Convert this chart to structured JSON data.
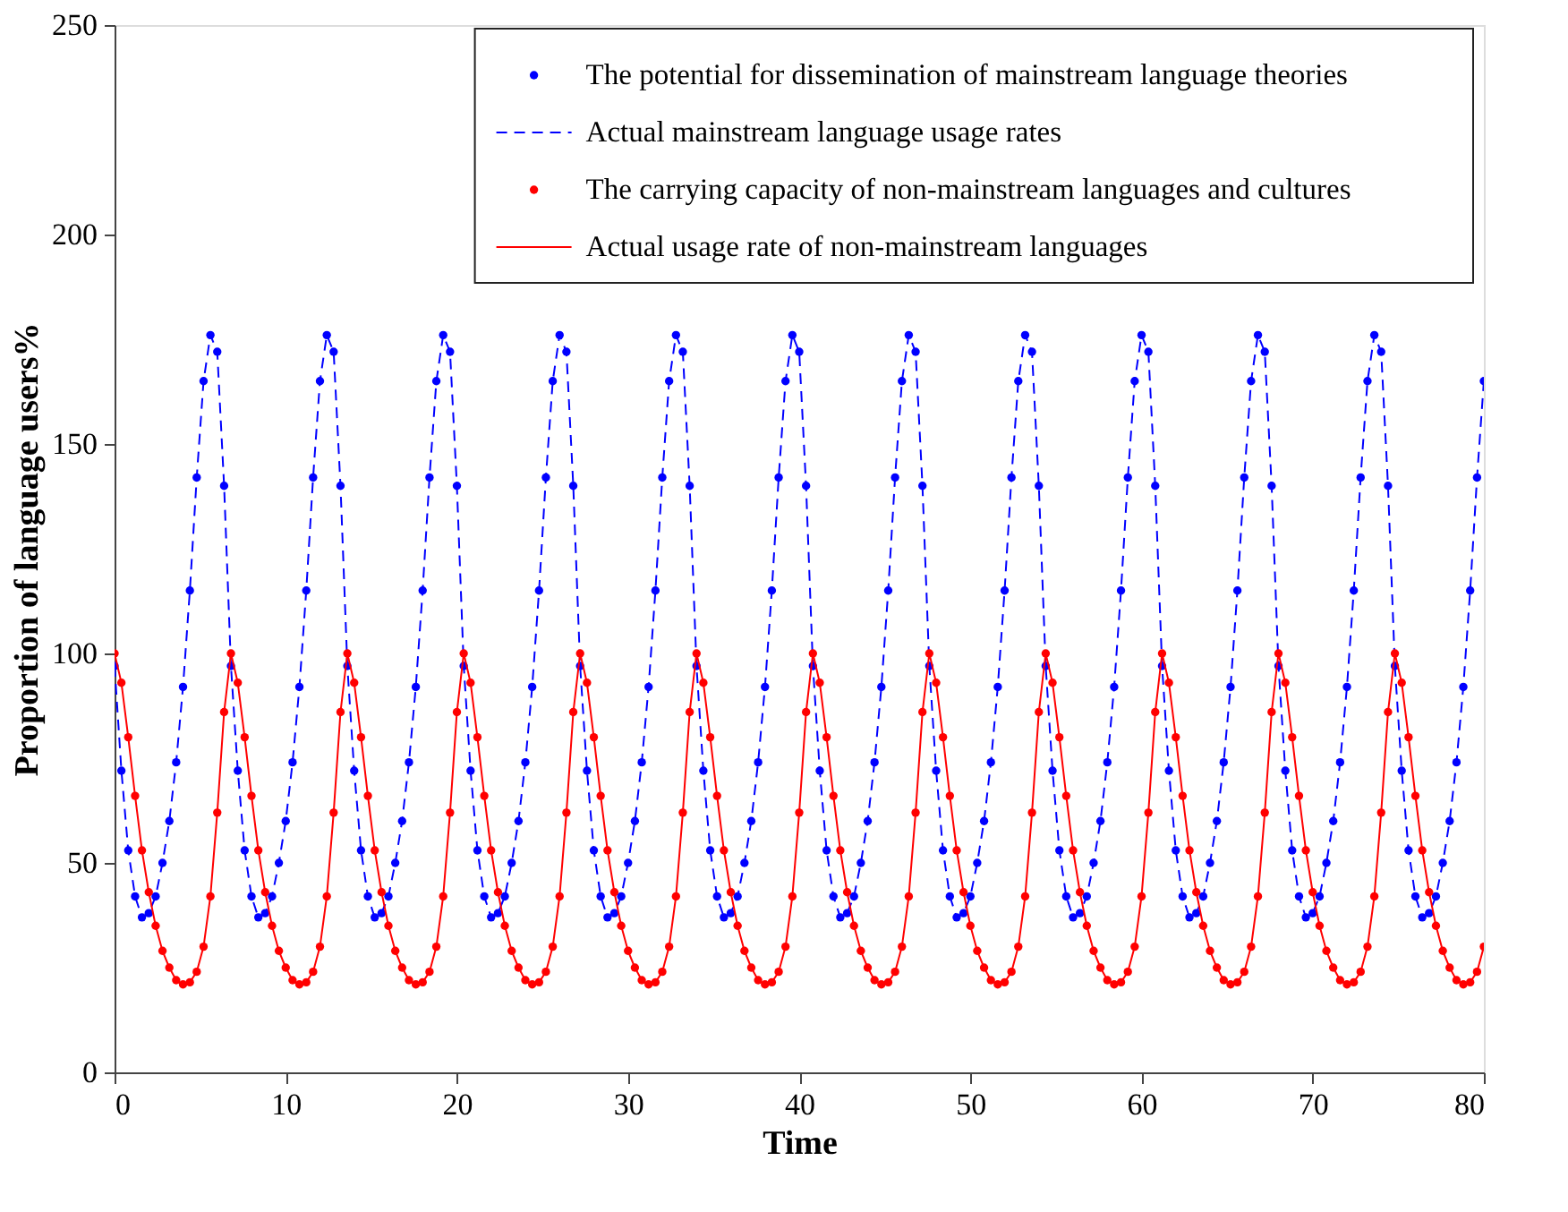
{
  "chart_data": {
    "type": "scatter",
    "xlabel": "Time",
    "ylabel": "Proportion of language users%",
    "xlim": [
      0,
      80
    ],
    "ylim": [
      0,
      250
    ],
    "xticks": [
      0,
      10,
      20,
      30,
      40,
      50,
      60,
      70,
      80
    ],
    "yticks": [
      0,
      50,
      100,
      150,
      200,
      250
    ],
    "grid": false,
    "legend": "top right",
    "x": [
      0,
      0.4,
      0.8,
      1.2,
      1.6,
      2,
      2.4,
      2.8,
      3.2,
      3.6,
      4,
      4.4,
      4.8,
      5.2,
      5.6,
      6,
      6.4,
      6.8,
      7.2,
      7.6,
      8,
      8.4,
      8.8,
      9.2,
      9.6,
      10,
      10.4,
      10.8,
      11.2,
      11.6,
      12,
      12.4,
      12.8,
      13.2,
      13.6,
      14,
      14.4,
      14.8,
      15.2,
      15.6,
      16,
      16.4,
      16.8,
      17.2,
      17.6,
      18,
      18.4,
      18.8,
      19.2,
      19.6,
      20,
      20.4,
      20.8,
      21.2,
      21.6,
      22,
      22.4,
      22.8,
      23.2,
      23.6,
      24,
      24.4,
      24.8,
      25.2,
      25.6,
      26,
      26.4,
      26.8,
      27.2,
      27.6,
      28,
      28.4,
      28.8,
      29.2,
      29.6,
      30,
      30.4,
      30.8,
      31.2,
      31.6,
      32,
      32.4,
      32.8,
      33.2,
      33.6,
      34,
      34.4,
      34.8,
      35.2,
      35.6,
      36,
      36.4,
      36.8,
      37.2,
      37.6,
      38,
      38.4,
      38.8,
      39.2,
      39.6,
      40,
      40.4,
      40.8,
      41.2,
      41.6,
      42,
      42.4,
      42.8,
      43.2,
      43.6,
      44,
      44.4,
      44.8,
      45.2,
      45.6,
      46,
      46.4,
      46.8,
      47.2,
      47.6,
      48,
      48.4,
      48.8,
      49.2,
      49.6,
      50,
      50.4,
      50.8,
      51.2,
      51.6,
      52,
      52.4,
      52.8,
      53.2,
      53.6,
      54,
      54.4,
      54.8,
      55.2,
      55.6,
      56,
      56.4,
      56.8,
      57.2,
      57.6,
      58,
      58.4,
      58.8,
      59.2,
      59.6,
      60,
      60.4,
      60.8,
      61.2,
      61.6,
      62,
      62.4,
      62.8,
      63.2,
      63.6,
      64,
      64.4,
      64.8,
      65.2,
      65.6,
      66,
      66.4,
      66.8,
      67.2,
      67.6,
      68,
      68.4,
      68.8,
      69.2,
      69.6,
      70,
      70.4,
      70.8,
      71.2,
      71.6,
      72,
      72.4,
      72.8,
      73.2,
      73.6,
      74,
      74.4,
      74.8,
      75.2,
      75.6,
      76,
      76.4,
      76.8,
      77.2,
      77.6,
      78,
      78.4,
      78.8,
      79.2,
      79.6,
      80
    ],
    "series": [
      {
        "name": "The potential for dissemination of mainstream language theories",
        "marker": "circle",
        "color": "#0000ff",
        "values": [
          97,
          72,
          53,
          42,
          37,
          38,
          42,
          50,
          60,
          74,
          92,
          115,
          142,
          165,
          176,
          172,
          140,
          97,
          72,
          53,
          42,
          37,
          38,
          42,
          50,
          60,
          74,
          92,
          115,
          142,
          165,
          176,
          172,
          140,
          97,
          72,
          53,
          42,
          37,
          38,
          42,
          50,
          60,
          74,
          92,
          115,
          142,
          165,
          176,
          172,
          140,
          97,
          72,
          53,
          42,
          37,
          38,
          42,
          50,
          60,
          74,
          92,
          115,
          142,
          165,
          176,
          172,
          140,
          97,
          72,
          53,
          42,
          37,
          38,
          42,
          50,
          60,
          74,
          92,
          115,
          142,
          165,
          176,
          172,
          140,
          97,
          72,
          53,
          42,
          37,
          38,
          42,
          50,
          60,
          74,
          92,
          115,
          142,
          165,
          176,
          172,
          140,
          97,
          72,
          53,
          42,
          37,
          38,
          42,
          50,
          60,
          74,
          92,
          115,
          142,
          165,
          176,
          172,
          140,
          97,
          72,
          53,
          42,
          37,
          38,
          42,
          50,
          60,
          74,
          92,
          115,
          142,
          165,
          176,
          172,
          140,
          97,
          72,
          53,
          42,
          37,
          38,
          42,
          50,
          60,
          74,
          92,
          115,
          142,
          165,
          176,
          172,
          140,
          97,
          72,
          53,
          42,
          37,
          38,
          42,
          50,
          60,
          74,
          92,
          115,
          142,
          165,
          176,
          172,
          140,
          97,
          72,
          53,
          42,
          37,
          38,
          42,
          50,
          60,
          74,
          92,
          115,
          142,
          165,
          176,
          172,
          140,
          97,
          72,
          53,
          42,
          37,
          38,
          42,
          50,
          60,
          74,
          92,
          115,
          142,
          165
        ]
      },
      {
        "name": "Actual mainstream language usage rates",
        "type": "line",
        "line_style": "dashed",
        "marker": "none",
        "color": "#0000ff",
        "values": [
          97,
          72,
          53,
          42,
          37,
          38,
          42,
          50,
          60,
          74,
          92,
          115,
          142,
          165,
          176,
          172,
          140,
          97,
          72,
          53,
          42,
          37,
          38,
          42,
          50,
          60,
          74,
          92,
          115,
          142,
          165,
          176,
          172,
          140,
          97,
          72,
          53,
          42,
          37,
          38,
          42,
          50,
          60,
          74,
          92,
          115,
          142,
          165,
          176,
          172,
          140,
          97,
          72,
          53,
          42,
          37,
          38,
          42,
          50,
          60,
          74,
          92,
          115,
          142,
          165,
          176,
          172,
          140,
          97,
          72,
          53,
          42,
          37,
          38,
          42,
          50,
          60,
          74,
          92,
          115,
          142,
          165,
          176,
          172,
          140,
          97,
          72,
          53,
          42,
          37,
          38,
          42,
          50,
          60,
          74,
          92,
          115,
          142,
          165,
          176,
          172,
          140,
          97,
          72,
          53,
          42,
          37,
          38,
          42,
          50,
          60,
          74,
          92,
          115,
          142,
          165,
          176,
          172,
          140,
          97,
          72,
          53,
          42,
          37,
          38,
          42,
          50,
          60,
          74,
          92,
          115,
          142,
          165,
          176,
          172,
          140,
          97,
          72,
          53,
          42,
          37,
          38,
          42,
          50,
          60,
          74,
          92,
          115,
          142,
          165,
          176,
          172,
          140,
          97,
          72,
          53,
          42,
          37,
          38,
          42,
          50,
          60,
          74,
          92,
          115,
          142,
          165,
          176,
          172,
          140,
          97,
          72,
          53,
          42,
          37,
          38,
          42,
          50,
          60,
          74,
          92,
          115,
          142,
          165,
          176,
          172,
          140,
          97,
          72,
          53,
          42,
          37,
          38,
          42,
          50,
          60,
          74,
          92,
          115,
          142,
          165
        ]
      },
      {
        "name": "The carrying capacity of non-mainstream languages and cultures",
        "marker": "circle",
        "color": "#ff0000",
        "values": [
          100,
          93,
          80,
          66,
          53,
          43,
          35,
          29,
          25,
          22,
          21,
          21.5,
          24,
          30,
          42,
          62,
          86,
          100,
          93,
          80,
          66,
          53,
          43,
          35,
          29,
          25,
          22,
          21,
          21.5,
          24,
          30,
          42,
          62,
          86,
          100,
          93,
          80,
          66,
          53,
          43,
          35,
          29,
          25,
          22,
          21,
          21.5,
          24,
          30,
          42,
          62,
          86,
          100,
          93,
          80,
          66,
          53,
          43,
          35,
          29,
          25,
          22,
          21,
          21.5,
          24,
          30,
          42,
          62,
          86,
          100,
          93,
          80,
          66,
          53,
          43,
          35,
          29,
          25,
          22,
          21,
          21.5,
          24,
          30,
          42,
          62,
          86,
          100,
          93,
          80,
          66,
          53,
          43,
          35,
          29,
          25,
          22,
          21,
          21.5,
          24,
          30,
          42,
          62,
          86,
          100,
          93,
          80,
          66,
          53,
          43,
          35,
          29,
          25,
          22,
          21,
          21.5,
          24,
          30,
          42,
          62,
          86,
          100,
          93,
          80,
          66,
          53,
          43,
          35,
          29,
          25,
          22,
          21,
          21.5,
          24,
          30,
          42,
          62,
          86,
          100,
          93,
          80,
          66,
          53,
          43,
          35,
          29,
          25,
          22,
          21,
          21.5,
          24,
          30,
          42,
          62,
          86,
          100,
          93,
          80,
          66,
          53,
          43,
          35,
          29,
          25,
          22,
          21,
          21.5,
          24,
          30,
          42,
          62,
          86,
          100,
          93,
          80,
          66,
          53,
          43,
          35,
          29,
          25,
          22,
          21,
          21.5,
          24,
          30,
          42,
          62,
          86,
          100,
          93,
          80,
          66,
          53,
          43,
          35,
          29,
          25,
          22,
          21,
          21.5,
          24,
          30
        ]
      },
      {
        "name": "Actual usage rate of non-mainstream languages",
        "type": "line",
        "line_style": "solid",
        "marker": "none",
        "color": "#ff0000",
        "values": [
          100,
          93,
          80,
          66,
          53,
          43,
          35,
          29,
          25,
          22,
          21,
          21.5,
          24,
          30,
          42,
          62,
          86,
          100,
          93,
          80,
          66,
          53,
          43,
          35,
          29,
          25,
          22,
          21,
          21.5,
          24,
          30,
          42,
          62,
          86,
          100,
          93,
          80,
          66,
          53,
          43,
          35,
          29,
          25,
          22,
          21,
          21.5,
          24,
          30,
          42,
          62,
          86,
          100,
          93,
          80,
          66,
          53,
          43,
          35,
          29,
          25,
          22,
          21,
          21.5,
          24,
          30,
          42,
          62,
          86,
          100,
          93,
          80,
          66,
          53,
          43,
          35,
          29,
          25,
          22,
          21,
          21.5,
          24,
          30,
          42,
          62,
          86,
          100,
          93,
          80,
          66,
          53,
          43,
          35,
          29,
          25,
          22,
          21,
          21.5,
          24,
          30,
          42,
          62,
          86,
          100,
          93,
          80,
          66,
          53,
          43,
          35,
          29,
          25,
          22,
          21,
          21.5,
          24,
          30,
          42,
          62,
          86,
          100,
          93,
          80,
          66,
          53,
          43,
          35,
          29,
          25,
          22,
          21,
          21.5,
          24,
          30,
          42,
          62,
          86,
          100,
          93,
          80,
          66,
          53,
          43,
          35,
          29,
          25,
          22,
          21,
          21.5,
          24,
          30,
          42,
          62,
          86,
          100,
          93,
          80,
          66,
          53,
          43,
          35,
          29,
          25,
          22,
          21,
          21.5,
          24,
          30,
          42,
          62,
          86,
          100,
          93,
          80,
          66,
          53,
          43,
          35,
          29,
          25,
          22,
          21,
          21.5,
          24,
          30,
          42,
          62,
          86,
          100,
          93,
          80,
          66,
          53,
          43,
          35,
          29,
          25,
          22,
          21,
          21.5,
          24,
          30
        ]
      }
    ]
  }
}
